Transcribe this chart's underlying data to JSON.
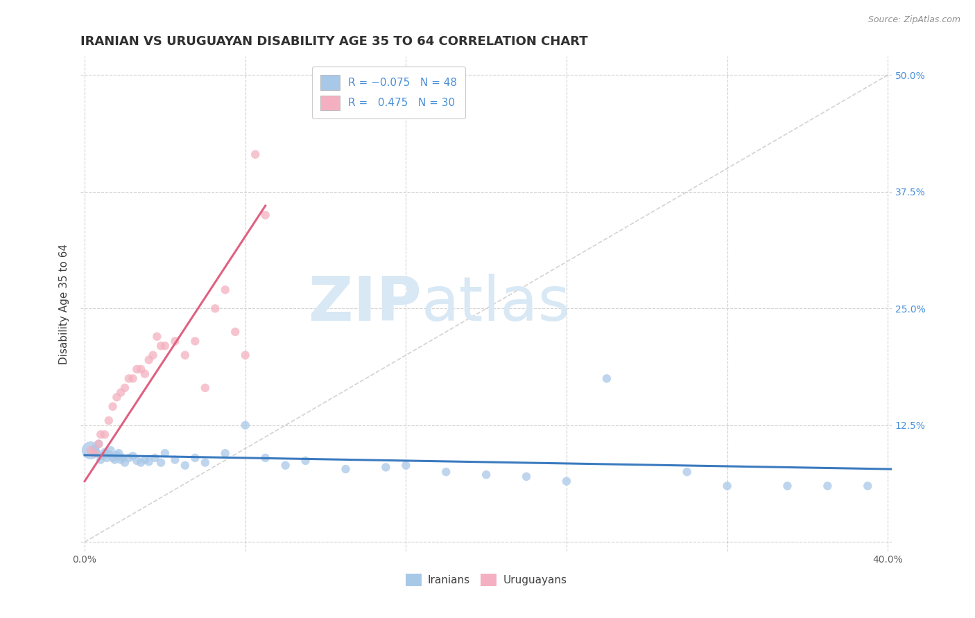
{
  "title": "IRANIAN VS URUGUAYAN DISABILITY AGE 35 TO 64 CORRELATION CHART",
  "source_text": "Source: ZipAtlas.com",
  "xlabel": "",
  "ylabel": "Disability Age 35 to 64",
  "xlim": [
    -0.002,
    0.402
  ],
  "ylim": [
    -0.01,
    0.52
  ],
  "xtick_positions": [
    0.0,
    0.08,
    0.16,
    0.24,
    0.32,
    0.4
  ],
  "xticklabels": [
    "0.0%",
    "",
    "",
    "",
    "",
    "40.0%"
  ],
  "ytick_positions": [
    0.0,
    0.125,
    0.25,
    0.375,
    0.5
  ],
  "yticklabels": [
    "",
    "12.5%",
    "25.0%",
    "37.5%",
    "50.0%"
  ],
  "iranian_color": "#a8c8e8",
  "uruguayan_color": "#f4b0c0",
  "iranian_line_color": "#3a7abf",
  "uruguayan_line_color": "#e06080",
  "diagonal_line_color": "#c8c8c8",
  "grid_color": "#d0d0d0",
  "background_color": "#ffffff",
  "title_color": "#303030",
  "tick_label_color": "#606060",
  "right_axis_color": "#4a90d9",
  "watermark_color": "#d8e8f4",
  "iranians_scatter_x": [
    0.003,
    0.005,
    0.006,
    0.007,
    0.008,
    0.009,
    0.01,
    0.011,
    0.012,
    0.013,
    0.014,
    0.015,
    0.016,
    0.017,
    0.018,
    0.019,
    0.02,
    0.022,
    0.024,
    0.026,
    0.028,
    0.03,
    0.032,
    0.035,
    0.038,
    0.04,
    0.045,
    0.05,
    0.055,
    0.06,
    0.07,
    0.08,
    0.09,
    0.1,
    0.11,
    0.13,
    0.15,
    0.16,
    0.18,
    0.2,
    0.22,
    0.24,
    0.26,
    0.3,
    0.32,
    0.35,
    0.37,
    0.39
  ],
  "iranians_scatter_y": [
    0.098,
    0.1,
    0.095,
    0.105,
    0.088,
    0.092,
    0.096,
    0.09,
    0.094,
    0.098,
    0.09,
    0.088,
    0.093,
    0.095,
    0.088,
    0.09,
    0.085,
    0.09,
    0.092,
    0.087,
    0.085,
    0.088,
    0.086,
    0.09,
    0.085,
    0.095,
    0.088,
    0.082,
    0.09,
    0.085,
    0.095,
    0.125,
    0.09,
    0.082,
    0.087,
    0.078,
    0.08,
    0.082,
    0.075,
    0.072,
    0.07,
    0.065,
    0.175,
    0.075,
    0.06,
    0.06,
    0.06,
    0.06
  ],
  "iranians_scatter_size": [
    350,
    80,
    80,
    80,
    80,
    80,
    80,
    80,
    80,
    80,
    80,
    80,
    80,
    80,
    80,
    80,
    80,
    80,
    80,
    80,
    80,
    80,
    80,
    80,
    80,
    80,
    80,
    80,
    80,
    80,
    80,
    80,
    80,
    80,
    80,
    80,
    80,
    80,
    80,
    80,
    80,
    80,
    80,
    80,
    80,
    80,
    80,
    80
  ],
  "uruguayans_scatter_x": [
    0.003,
    0.005,
    0.007,
    0.008,
    0.01,
    0.012,
    0.014,
    0.016,
    0.018,
    0.02,
    0.022,
    0.024,
    0.026,
    0.028,
    0.03,
    0.032,
    0.034,
    0.036,
    0.038,
    0.04,
    0.045,
    0.05,
    0.055,
    0.06,
    0.065,
    0.07,
    0.075,
    0.08,
    0.085,
    0.09
  ],
  "uruguayans_scatter_y": [
    0.098,
    0.095,
    0.105,
    0.115,
    0.115,
    0.13,
    0.145,
    0.155,
    0.16,
    0.165,
    0.175,
    0.175,
    0.185,
    0.185,
    0.18,
    0.195,
    0.2,
    0.22,
    0.21,
    0.21,
    0.215,
    0.2,
    0.215,
    0.165,
    0.25,
    0.27,
    0.225,
    0.2,
    0.415,
    0.35
  ],
  "uruguayans_scatter_size": [
    80,
    80,
    80,
    80,
    80,
    80,
    80,
    80,
    80,
    80,
    80,
    80,
    80,
    80,
    80,
    80,
    80,
    80,
    80,
    80,
    80,
    80,
    80,
    80,
    80,
    80,
    80,
    80,
    80,
    80
  ],
  "iranian_trend_x": [
    0.0,
    0.402
  ],
  "iranian_trend_y": [
    0.093,
    0.078
  ],
  "uruguayan_trend_x": [
    0.0,
    0.09
  ],
  "uruguayan_trend_y": [
    0.065,
    0.36
  ]
}
